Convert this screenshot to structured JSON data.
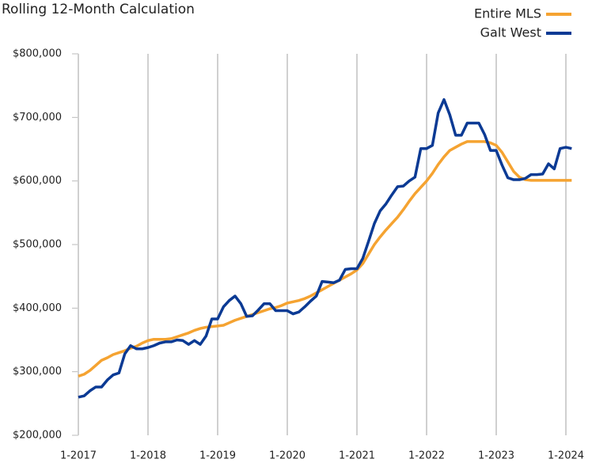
{
  "chart_data": {
    "type": "line",
    "title": "Rolling 12-Month Calculation",
    "categories": [
      "1-2017",
      null,
      null,
      null,
      null,
      null,
      null,
      null,
      null,
      null,
      null,
      null,
      "1-2018",
      null,
      null,
      null,
      null,
      null,
      null,
      null,
      null,
      null,
      null,
      null,
      "1-2019",
      null,
      null,
      null,
      null,
      null,
      null,
      null,
      null,
      null,
      null,
      null,
      "1-2020",
      null,
      null,
      null,
      null,
      null,
      null,
      null,
      null,
      null,
      null,
      null,
      "1-2021",
      null,
      null,
      null,
      null,
      null,
      null,
      null,
      null,
      null,
      null,
      null,
      "1-2022",
      null,
      null,
      null,
      null,
      null,
      null,
      null,
      null,
      null,
      null,
      null,
      "1-2023",
      null,
      null,
      null,
      null,
      null,
      null,
      null,
      null,
      null,
      null,
      null,
      "1-2024",
      null
    ],
    "series": [
      {
        "name": "Entire MLS",
        "color": "#f5a331",
        "values": [
          293000,
          296000,
          302000,
          310000,
          318000,
          322000,
          327000,
          330000,
          333000,
          337000,
          340000,
          345000,
          349000,
          351000,
          351000,
          351000,
          352000,
          355000,
          358000,
          361000,
          365000,
          368000,
          370000,
          371000,
          372000,
          373000,
          377000,
          381000,
          384000,
          387000,
          390000,
          393000,
          396000,
          399000,
          401000,
          404000,
          408000,
          410000,
          412000,
          415000,
          419000,
          424000,
          429000,
          434000,
          439000,
          444000,
          449000,
          454000,
          460000,
          470000,
          485000,
          500000,
          512000,
          523000,
          533000,
          543000,
          555000,
          568000,
          580000,
          590000,
          600000,
          612000,
          626000,
          638000,
          648000,
          653000,
          658000,
          662000,
          662000,
          662000,
          662000,
          660000,
          656000,
          645000,
          630000,
          615000,
          606000,
          602000,
          601000,
          601000,
          601000,
          601000,
          601000,
          601000,
          601000,
          601000
        ]
      },
      {
        "name": "Galt West",
        "color": "#0b3a94",
        "values": [
          260000,
          262000,
          270000,
          276000,
          276000,
          287000,
          295000,
          298000,
          328000,
          341000,
          336000,
          336000,
          338000,
          341000,
          345000,
          347000,
          347000,
          350000,
          349000,
          343000,
          349000,
          343000,
          356000,
          383000,
          383000,
          402000,
          412000,
          419000,
          407000,
          387000,
          388000,
          397000,
          407000,
          407000,
          396000,
          396000,
          396000,
          391000,
          394000,
          402000,
          411000,
          419000,
          442000,
          441000,
          440000,
          444000,
          461000,
          462000,
          462000,
          478000,
          505000,
          533000,
          553000,
          564000,
          578000,
          591000,
          592000,
          600000,
          606000,
          651000,
          651000,
          656000,
          707000,
          728000,
          704000,
          672000,
          672000,
          691000,
          691000,
          691000,
          673000,
          648000,
          648000,
          625000,
          605000,
          602000,
          602000,
          604000,
          610000,
          610000,
          611000,
          627000,
          619000,
          651000,
          653000,
          651000
        ]
      }
    ],
    "ylim": [
      200000,
      800000
    ],
    "yticks": [
      {
        "value": 200000,
        "label": "$200,000"
      },
      {
        "value": 300000,
        "label": "$300,000"
      },
      {
        "value": 400000,
        "label": "$400,000"
      },
      {
        "value": 500000,
        "label": "$500,000"
      },
      {
        "value": 600000,
        "label": "$600,000"
      },
      {
        "value": 700000,
        "label": "$700,000"
      },
      {
        "value": 800000,
        "label": "$800,000"
      }
    ],
    "grid": "x",
    "legend": "upper right"
  }
}
